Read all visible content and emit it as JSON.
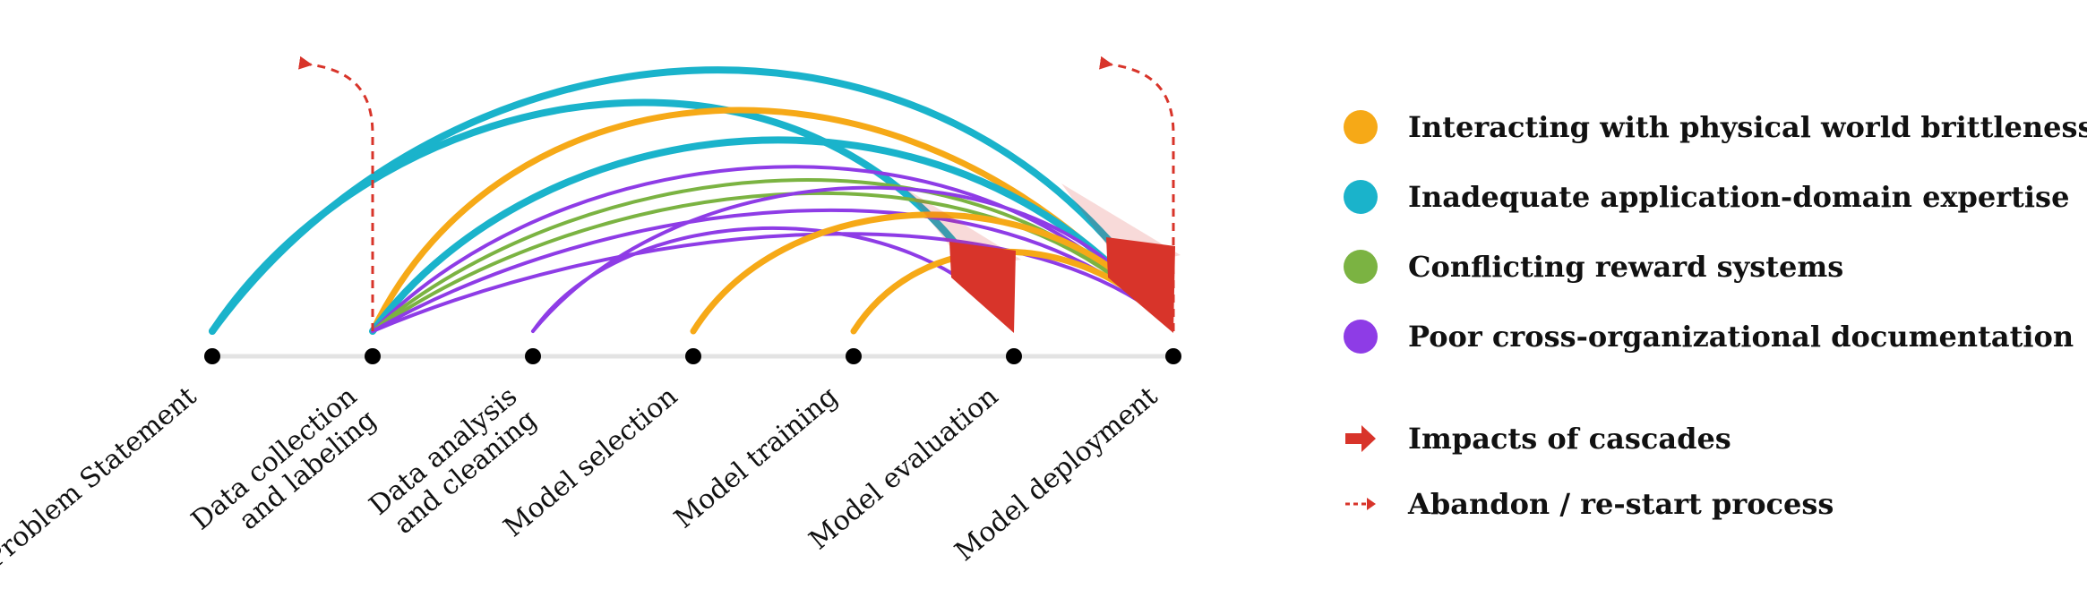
{
  "colors": {
    "physical": "#F6A917",
    "domain": "#1AB3CB",
    "reward": "#7BB342",
    "documentation": "#8E3CE6",
    "impact": "#D8342A",
    "restart": "#D8342A",
    "timeline": "#E3E3E3",
    "node": "#000000"
  },
  "stages": [
    {
      "line1": "Problem Statement",
      "line2": ""
    },
    {
      "line1": "Data collection",
      "line2": "and labeling"
    },
    {
      "line1": "Data analysis",
      "line2": "and cleaning"
    },
    {
      "line1": "Model selection",
      "line2": ""
    },
    {
      "line1": "Model training",
      "line2": ""
    },
    {
      "line1": "Model evaluation",
      "line2": ""
    },
    {
      "line1": "Model deployment",
      "line2": ""
    }
  ],
  "legend": {
    "items": [
      {
        "key": "physical",
        "label": "Interacting with physical world brittleness",
        "icon": "dot-icon"
      },
      {
        "key": "domain",
        "label": "Inadequate application-domain expertise",
        "icon": "dot-icon"
      },
      {
        "key": "reward",
        "label": "Conflicting reward systems",
        "icon": "dot-icon"
      },
      {
        "key": "documentation",
        "label": "Poor cross-organizational documentation",
        "icon": "dot-icon"
      }
    ],
    "impact_label": "Impacts of cascades",
    "restart_label": "Abandon / re-start process"
  },
  "cascades": [
    {
      "from": 0,
      "to": 5,
      "type": "domain"
    },
    {
      "from": 0,
      "to": 6,
      "type": "domain"
    },
    {
      "from": 1,
      "to": 6,
      "type": "physical"
    },
    {
      "from": 1,
      "to": 6,
      "type": "domain"
    },
    {
      "from": 1,
      "to": 6,
      "type": "documentation"
    },
    {
      "from": 1,
      "to": 6,
      "type": "reward"
    },
    {
      "from": 1,
      "to": 6,
      "type": "reward"
    },
    {
      "from": 1,
      "to": 6,
      "type": "documentation"
    },
    {
      "from": 1,
      "to": 6,
      "type": "documentation"
    },
    {
      "from": 2,
      "to": 6,
      "type": "documentation"
    },
    {
      "from": 2,
      "to": 5,
      "type": "documentation"
    },
    {
      "from": 3,
      "to": 6,
      "type": "physical"
    },
    {
      "from": 4,
      "to": 6,
      "type": "physical"
    }
  ],
  "restarts": [
    1,
    6
  ]
}
